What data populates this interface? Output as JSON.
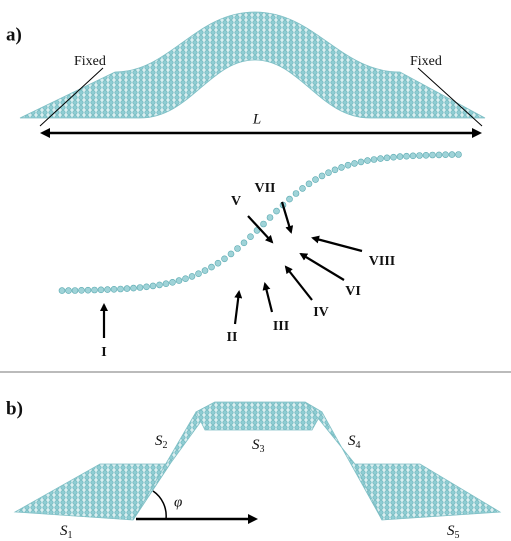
{
  "panel_a": {
    "label": "a)",
    "fixed_left": "Fixed",
    "fixed_right": "Fixed",
    "length": "L",
    "positions": [
      "I",
      "II",
      "III",
      "IV",
      "V",
      "VI",
      "VII",
      "VIII"
    ]
  },
  "panel_b": {
    "label": "b)",
    "angle": "φ",
    "segments": [
      {
        "symbol": "S",
        "subscript": "1"
      },
      {
        "symbol": "S",
        "subscript": "2"
      },
      {
        "symbol": "S",
        "subscript": "3"
      },
      {
        "symbol": "S",
        "subscript": "4"
      },
      {
        "symbol": "S",
        "subscript": "5"
      }
    ]
  }
}
